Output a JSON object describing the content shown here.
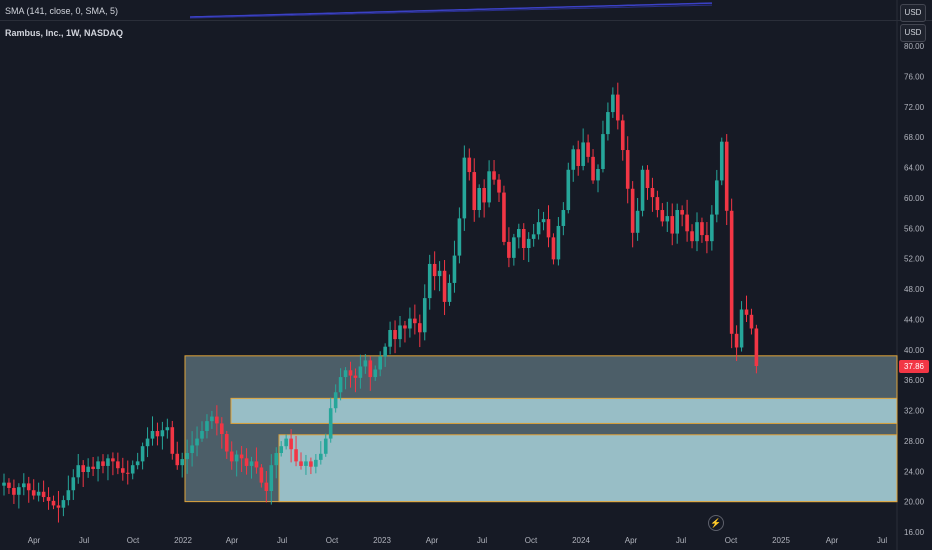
{
  "header": {
    "indicator_label": "SMA (141, close, 0, SMA, 5)",
    "title": "Rambus, Inc., 1W, NASDAQ",
    "currency_top": "USD",
    "currency_main": "USD"
  },
  "colors": {
    "background": "#161a25",
    "grid": "#1f2330",
    "up": "#26a69a",
    "down": "#f23645",
    "zone_fill_outer": "#b2dfe6",
    "zone_border": "#e0a43a",
    "sma_line": "#3b41c5",
    "axis_text": "#b2b5be"
  },
  "chart_data": {
    "type": "candlestick",
    "title": "Rambus, Inc., 1W, NASDAQ",
    "interval": "1W",
    "exchange": "NASDAQ",
    "currency": "USD",
    "y_axis_ticks": [
      "80.00",
      "76.00",
      "72.00",
      "68.00",
      "64.00",
      "60.00",
      "56.00",
      "52.00",
      "48.00",
      "44.00",
      "40.00",
      "36.00",
      "32.00",
      "28.00",
      "24.00",
      "20.00",
      "16.00"
    ],
    "x_axis_ticks": [
      "Apr",
      "Jul",
      "Oct",
      "2022",
      "Apr",
      "Jul",
      "Oct",
      "2023",
      "Apr",
      "Jul",
      "Oct",
      "2024",
      "Apr",
      "Jul",
      "Oct",
      "2025",
      "Apr",
      "Jul"
    ],
    "ylim": [
      13.5,
      81.5
    ],
    "last_price": "37.86",
    "grid": false,
    "zones": [
      {
        "top": 39.2,
        "bottom": 20.0,
        "start": "2022-01"
      },
      {
        "top": 33.6,
        "bottom": 30.3,
        "start": "2022-04"
      },
      {
        "top": 28.8,
        "bottom": 20.0,
        "start": "2022-07"
      }
    ],
    "series": [
      {
        "name": "close",
        "values": [
          22.5,
          21.8,
          20.9,
          21.9,
          22.4,
          21.5,
          20.8,
          21.3,
          20.6,
          20.1,
          19.5,
          19.2,
          20.2,
          21.5,
          23.2,
          24.8,
          23.9,
          24.6,
          24.3,
          25.3,
          24.7,
          25.7,
          25.3,
          24.4,
          23.8,
          23.7,
          24.8,
          25.3,
          27.3,
          28.3,
          29.3,
          28.6,
          29.4,
          29.8,
          26.3,
          24.8,
          25.6,
          26.4,
          27.4,
          28.3,
          29.3,
          30.6,
          31.2,
          30.3,
          28.9,
          26.6,
          25.3,
          26.2,
          25.7,
          24.7,
          25.3,
          24.5,
          22.5,
          21.4,
          24.8,
          26.4,
          27.3,
          28.3,
          26.9,
          25.3,
          24.7,
          25.3,
          24.6,
          25.5,
          26.3,
          28.3,
          32.3,
          34.4,
          36.4,
          37.3,
          36.6,
          36.3,
          37.8,
          38.6,
          36.4,
          37.4,
          39.1,
          40.4,
          42.6,
          41.4,
          43.2,
          42.8,
          44.1,
          43.5,
          42.3,
          46.8,
          51.3,
          49.7,
          50.4,
          46.3,
          48.8,
          52.4,
          57.3,
          65.3,
          63.4,
          58.4,
          61.3,
          59.4,
          63.5,
          62.4,
          60.7,
          54.2,
          52.1,
          54.8,
          55.9,
          53.4,
          54.6,
          55.2,
          56.8,
          57.2,
          54.8,
          51.9,
          56.3,
          58.4,
          63.7,
          66.4,
          64.2,
          67.3,
          65.4,
          62.3,
          63.8,
          68.4,
          71.3,
          73.6,
          70.2,
          66.3,
          61.2,
          55.4,
          58.3,
          63.7,
          61.3,
          60.1,
          58.4,
          56.9,
          57.6,
          55.3,
          58.4,
          57.8,
          55.6,
          54.3,
          56.8,
          55.1,
          54.3,
          57.8,
          62.3,
          67.4,
          58.3,
          42.1,
          40.3,
          45.3,
          44.6,
          42.8,
          37.86
        ]
      }
    ],
    "annotations": [
      "37.86"
    ]
  },
  "icons": {
    "brand": "lightning-icon",
    "lightning_glyph": "⚡"
  }
}
